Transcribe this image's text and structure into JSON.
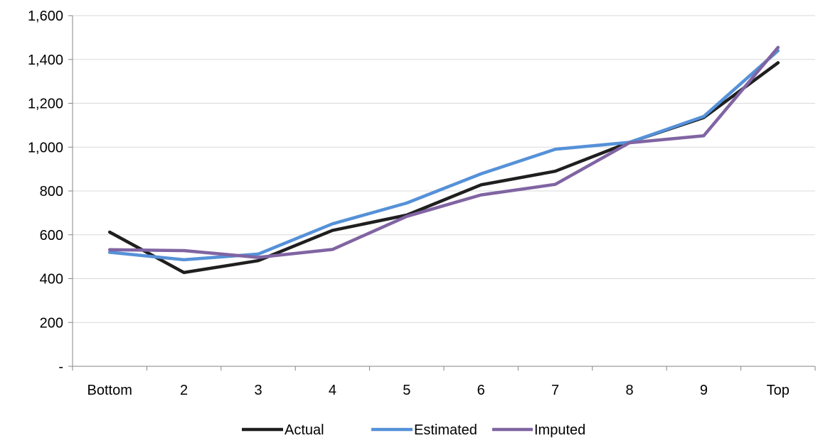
{
  "chart_data": {
    "type": "line",
    "title": "",
    "xlabel": "",
    "ylabel": "",
    "categories": [
      "Bottom",
      "2",
      "3",
      "4",
      "5",
      "6",
      "7",
      "8",
      "9",
      "Top"
    ],
    "ylim": [
      0,
      1600
    ],
    "yticks": [
      0,
      200,
      400,
      600,
      800,
      1000,
      1200,
      1400,
      1600
    ],
    "ytick_labels": [
      "-",
      "200",
      "400",
      "600",
      "800",
      "1,000",
      "1,200",
      "1,400",
      "1,600"
    ],
    "grid": true,
    "legend_position": "bottom",
    "series": [
      {
        "name": "Actual",
        "color": "#1f1f1f",
        "values": [
          612,
          428,
          482,
          620,
          690,
          828,
          890,
          1022,
          1135,
          1385
        ]
      },
      {
        "name": "Estimated",
        "color": "#5591d8",
        "values": [
          520,
          486,
          512,
          650,
          745,
          878,
          990,
          1022,
          1140,
          1440
        ]
      },
      {
        "name": "Imputed",
        "color": "#8064a2",
        "values": [
          532,
          528,
          497,
          533,
          684,
          782,
          830,
          1020,
          1052,
          1455
        ]
      }
    ]
  }
}
